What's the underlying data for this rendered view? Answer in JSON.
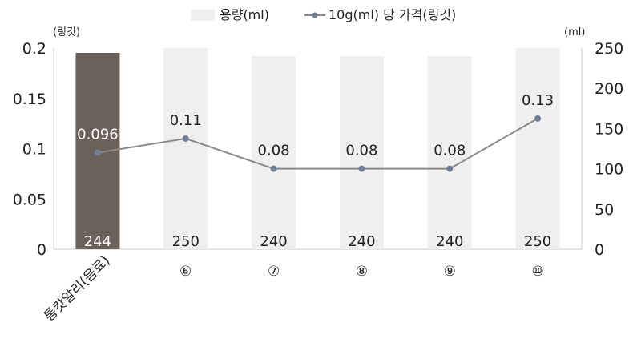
{
  "chart_data": {
    "type": "bar+line",
    "categories": [
      "통캇알리(음료)",
      "⑥",
      "⑦",
      "⑧",
      "⑨",
      "⑩"
    ],
    "series": [
      {
        "name": "용량(ml)",
        "type": "bar",
        "axis": "right",
        "values": [
          244,
          250,
          240,
          240,
          240,
          250
        ],
        "labels": [
          "244",
          "250",
          "240",
          "240",
          "240",
          "250"
        ],
        "color": "#f0efee",
        "highlight_color": "#6b605a"
      },
      {
        "name": "10g(ml) 당 가격(링깃)",
        "type": "line",
        "axis": "left",
        "values": [
          0.096,
          0.11,
          0.08,
          0.08,
          0.08,
          0.13
        ],
        "labels": [
          "0.096",
          "0.11",
          "0.08",
          "0.08",
          "0.08",
          "0.13"
        ],
        "color": "#8a8a8a",
        "marker_color": "#6f7f99"
      }
    ],
    "y_left": {
      "unit_label": "(링깃)",
      "min": 0,
      "max": 0.2,
      "ticks": [
        "0",
        "0.05",
        "0.1",
        "0.15",
        "0.2"
      ]
    },
    "y_right": {
      "unit_label": "(ml)",
      "min": 0,
      "max": 250,
      "ticks": [
        "0",
        "50",
        "100",
        "150",
        "200",
        "250"
      ]
    },
    "legend_position": "top",
    "grid": false
  }
}
